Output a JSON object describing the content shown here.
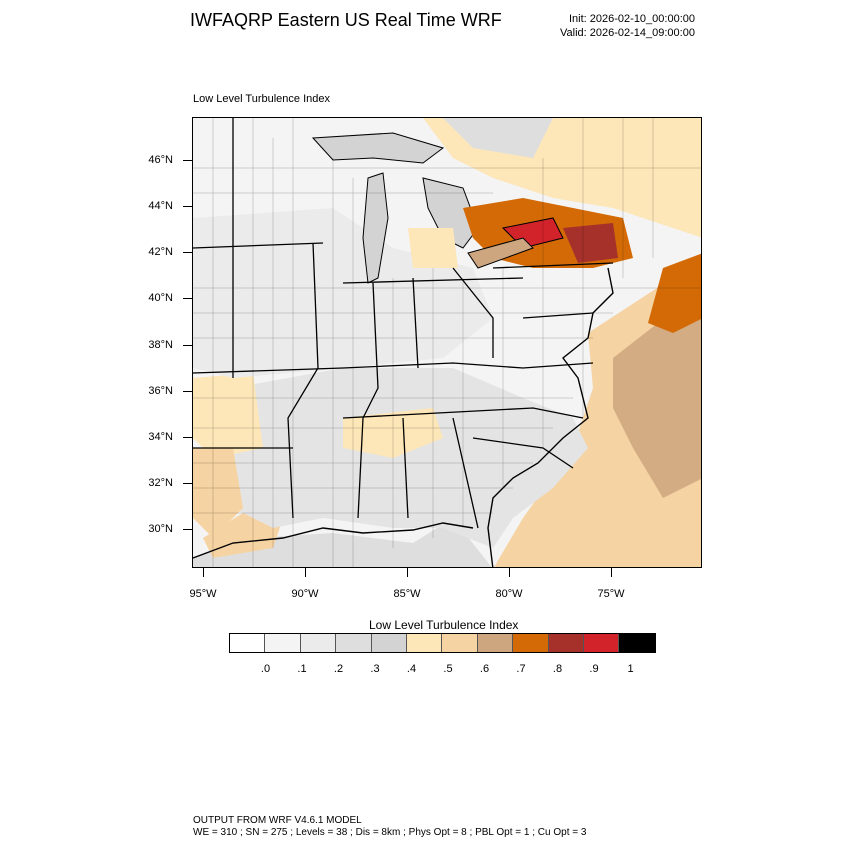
{
  "header": {
    "title": "IWFAQRP Eastern US Real Time WRF",
    "init": "Init: 2026-02-10_00:00:00",
    "valid": "Valid: 2026-02-14_09:00:00"
  },
  "map": {
    "field_title": "Low Level Turbulence Index",
    "lat_labels": [
      "46°N",
      "44°N",
      "42°N",
      "40°N",
      "38°N",
      "36°N",
      "34°N",
      "32°N",
      "30°N"
    ],
    "lon_labels": [
      "95°W",
      "90°W",
      "85°W",
      "80°W",
      "75°W"
    ],
    "regions": {
      "northeast_high": "Lake Erie / Lake Ontario / upstate New York band at 0.8–0.9",
      "atlantic_offshore": "Offshore Atlantic at 0.6–0.7",
      "southeast_land": "Southeast land mostly 0.2–0.4"
    }
  },
  "colorbar": {
    "title": "Low Level Turbulence Index",
    "colors": [
      "#ffffff",
      "#f4f4f4",
      "#ebebeb",
      "#dedede",
      "#d3d3d3",
      "#fde6b8",
      "#f5d3a2",
      "#cda57f",
      "#d36a06",
      "#a5312a",
      "#d2232a",
      "#000000"
    ],
    "labels": [
      ".0",
      ".1",
      ".2",
      ".3",
      ".4",
      ".5",
      ".6",
      ".7",
      ".8",
      ".9",
      "1"
    ]
  },
  "footer": {
    "line1": "OUTPUT FROM WRF V4.6.1 MODEL",
    "line2": "WE = 310 ; SN = 275 ; Levels = 38 ; Dis = 8km ; Phys Opt = 8 ; PBL Opt = 1 ; Cu Opt = 3"
  }
}
